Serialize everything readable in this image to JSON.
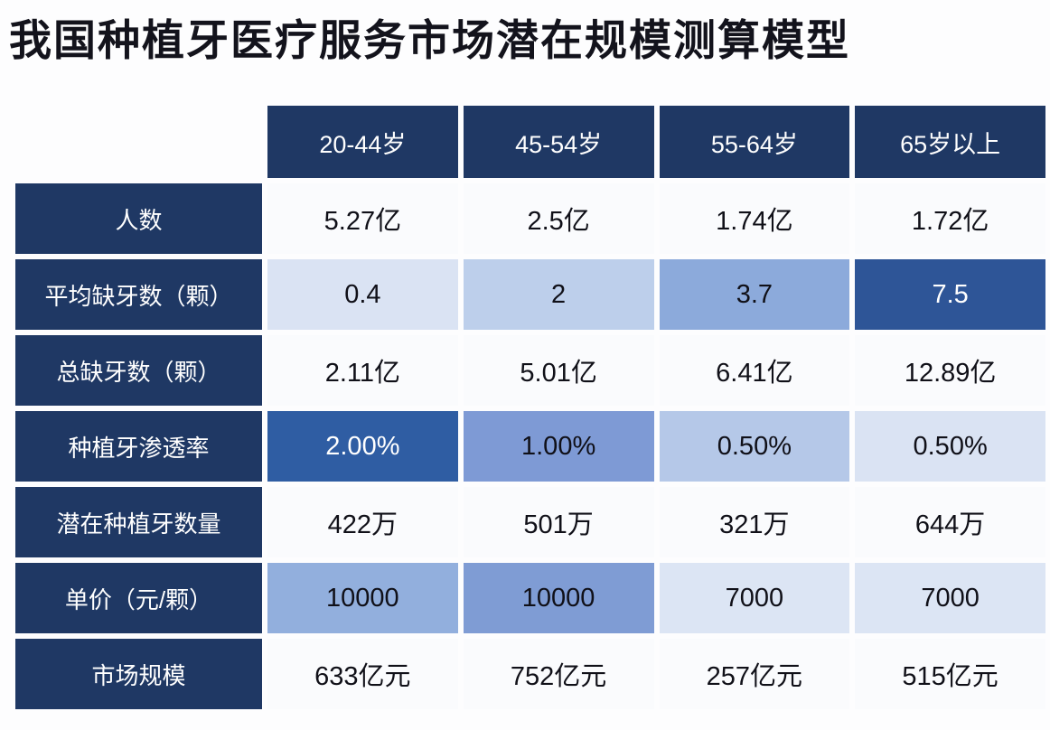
{
  "title": "我国种植牙医疗服务市场潜在规模测算模型",
  "colors": {
    "title_text": "#13131c",
    "header_bg": "#1f3864",
    "header_text": "#ffffff",
    "page_bg": "#fdfdfe",
    "heat_dark": "#2e5597",
    "heat_mid": "#8caadb",
    "heat_light": "#b9cce9",
    "heat_faint": "#dae3f3",
    "plain_cell_bg": "#fafbfd"
  },
  "chart_data": {
    "type": "table",
    "title": "我国种植牙医疗服务市场潜在规模测算模型",
    "columns": [
      "20-44岁",
      "45-54岁",
      "55-64岁",
      "65岁以上"
    ],
    "rows": [
      {
        "label": "人数",
        "values": [
          "5.27亿",
          "2.5亿",
          "1.74亿",
          "1.72亿"
        ]
      },
      {
        "label": "平均缺牙数（颗）",
        "values": [
          "0.4",
          "2",
          "3.7",
          "7.5"
        ]
      },
      {
        "label": "总缺牙数（颗）",
        "values": [
          "2.11亿",
          "5.01亿",
          "6.41亿",
          "12.89亿"
        ]
      },
      {
        "label": "种植牙渗透率",
        "values": [
          "2.00%",
          "1.00%",
          "0.50%",
          "0.50%"
        ]
      },
      {
        "label": "潜在种植牙数量",
        "values": [
          "422万",
          "501万",
          "321万",
          "644万"
        ]
      },
      {
        "label": "单价（元/颗）",
        "values": [
          "10000",
          "10000",
          "7000",
          "7000"
        ]
      },
      {
        "label": "市场规模",
        "values": [
          "633亿元",
          "752亿元",
          "257亿元",
          "515亿元"
        ]
      }
    ]
  },
  "heatmap_colors": {
    "rows": [
      {
        "bg": [
          "#fafbfd",
          "#fafbfd",
          "#fafbfd",
          "#fafbfd"
        ],
        "fg": [
          "#101018",
          "#101018",
          "#101018",
          "#101018"
        ]
      },
      {
        "bg": [
          "#dae3f3",
          "#bdcfeb",
          "#8caadb",
          "#2e5597"
        ],
        "fg": [
          "#101018",
          "#101018",
          "#101018",
          "#ffffff"
        ]
      },
      {
        "bg": [
          "#fafbfd",
          "#fafbfd",
          "#fafbfd",
          "#fafbfd"
        ],
        "fg": [
          "#101018",
          "#101018",
          "#101018",
          "#101018"
        ]
      },
      {
        "bg": [
          "#2f5da3",
          "#7e9ad5",
          "#b5c8e8",
          "#dae3f3"
        ],
        "fg": [
          "#ffffff",
          "#101018",
          "#101018",
          "#101018"
        ]
      },
      {
        "bg": [
          "#fafbfd",
          "#fafbfd",
          "#fafbfd",
          "#fafbfd"
        ],
        "fg": [
          "#101018",
          "#101018",
          "#101018",
          "#101018"
        ]
      },
      {
        "bg": [
          "#92afdd",
          "#7f9cd4",
          "#dce5f4",
          "#dce5f4"
        ],
        "fg": [
          "#101018",
          "#101018",
          "#101018",
          "#101018"
        ]
      },
      {
        "bg": [
          "#fafbfd",
          "#fafbfd",
          "#fafbfd",
          "#fafbfd"
        ],
        "fg": [
          "#101018",
          "#101018",
          "#101018",
          "#101018"
        ]
      }
    ]
  }
}
